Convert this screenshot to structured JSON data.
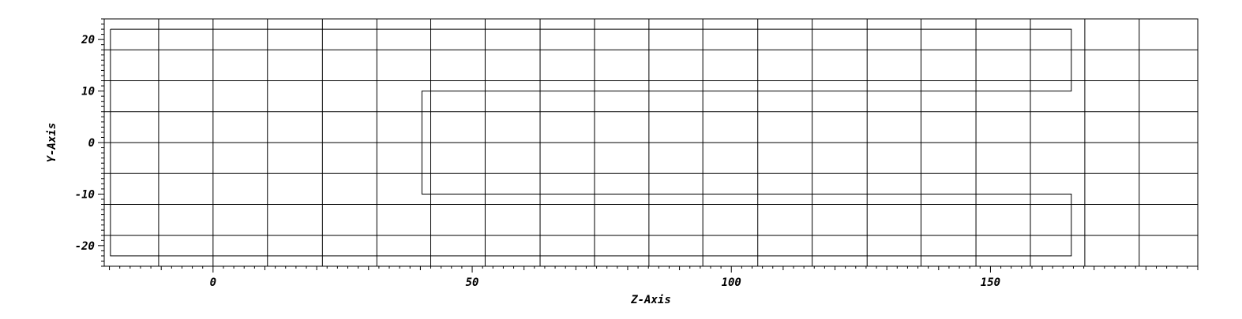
{
  "chart_data": {
    "type": "line",
    "title": "",
    "xlabel": "Z-Axis",
    "ylabel": "Y-Axis",
    "xlim": [
      -21,
      190
    ],
    "ylim": [
      -24,
      24
    ],
    "grid": true,
    "x_ticks": [
      0,
      50,
      100,
      150
    ],
    "x_tick_labels": [
      "0",
      "50",
      "100",
      "150"
    ],
    "y_ticks": [
      -20,
      -10,
      0,
      10,
      20
    ],
    "y_tick_labels": [
      "-20",
      "-10",
      "0",
      "10",
      "20"
    ],
    "grid_x": [
      -10.5,
      0,
      10.5,
      21.1,
      31.6,
      42.0,
      52.5,
      63.1,
      73.6,
      84.1,
      94.5,
      105.1,
      115.6,
      126.2,
      136.6,
      147.2,
      157.7,
      168.2,
      178.7
    ],
    "grid_y": [
      -18,
      -12,
      -6,
      0,
      6,
      12,
      18
    ],
    "series": [
      {
        "x": [
          -19.8,
          165.6,
          165.6,
          40.3,
          40.3,
          165.6,
          165.6,
          -19.8,
          -19.8
        ],
        "y": [
          22,
          22,
          10,
          10,
          -10,
          -10,
          -22,
          -22,
          22
        ]
      }
    ]
  }
}
